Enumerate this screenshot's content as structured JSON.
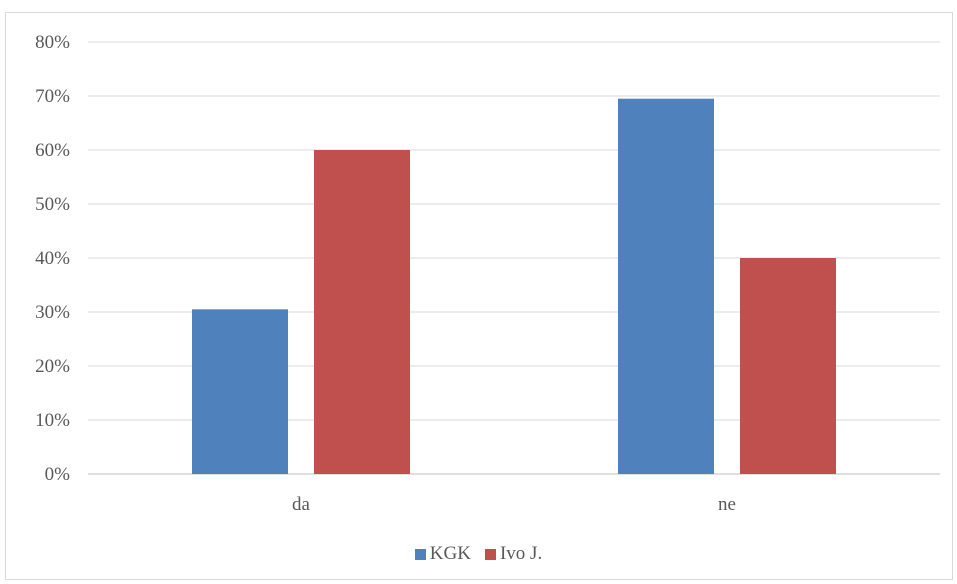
{
  "chart_data": {
    "type": "bar",
    "categories": [
      "da",
      "ne"
    ],
    "series": [
      {
        "name": "KGK",
        "values": [
          30.5,
          69.5
        ],
        "color": "#4f81bd"
      },
      {
        "name": "Ivo J.",
        "values": [
          60,
          40
        ],
        "color": "#c0504d"
      }
    ],
    "ylim": [
      0,
      80
    ],
    "ytick_step": 10,
    "ytick_suffix": "%",
    "grid": true,
    "legend": "bottom"
  }
}
